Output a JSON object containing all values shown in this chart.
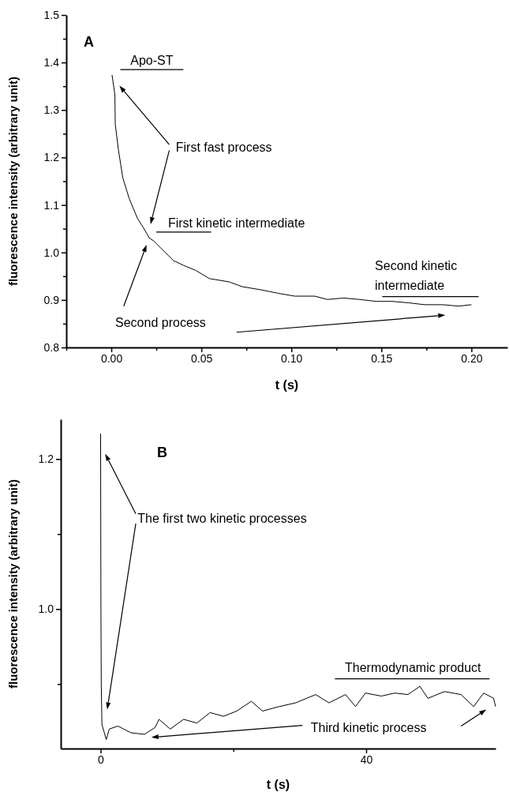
{
  "chart_data": [
    {
      "type": "line",
      "title": "A",
      "xlabel": "t (s)",
      "ylabel": "fluorescence intensity (arbitrary unit)",
      "xlim": [
        -0.025,
        0.22
      ],
      "xticks": [
        {
          "value": -0.025,
          "label": null
        },
        {
          "value": 0,
          "label": "0.00"
        },
        {
          "value": 0.025,
          "label": null
        },
        0.05,
        {
          "value": 0.075,
          "label": null
        },
        {
          "value": 0.1,
          "label": "0.10"
        },
        {
          "value": 0.125,
          "label": null
        },
        0.15,
        {
          "value": 0.175,
          "label": null
        },
        {
          "value": 0.2,
          "label": "0.20"
        }
      ],
      "ylim": [
        0.8,
        1.5
      ],
      "yticks": [
        0.8,
        {
          "value": 0.85,
          "label": null
        },
        0.9,
        {
          "value": 0.95,
          "label": null
        },
        {
          "value": 1.0,
          "label": "1.0"
        },
        {
          "value": 1.05,
          "label": null
        },
        1.1,
        {
          "value": 1.15,
          "label": null
        },
        1.2,
        {
          "value": 1.25,
          "label": null
        },
        1.3,
        {
          "value": 1.35,
          "label": null
        },
        1.4,
        {
          "value": 1.45,
          "label": null
        },
        1.5
      ],
      "series": [
        {
          "color": "#000000",
          "x": [
            0.0004,
            0.002,
            0.0022,
            0.004,
            0.0064,
            0.01,
            0.0145,
            0.018,
            0.021,
            0.0236,
            0.0273,
            0.0345,
            0.04,
            0.047,
            0.0545,
            0.0655,
            0.0727,
            0.0836,
            0.0927,
            0.1018,
            0.113,
            0.12,
            0.129,
            0.138,
            0.147,
            0.156,
            0.165,
            0.174,
            0.184,
            0.193,
            0.2
          ],
          "values": [
            1.374,
            1.332,
            1.27,
            1.215,
            1.157,
            1.113,
            1.072,
            1.051,
            1.031,
            1.024,
            1.01,
            0.983,
            0.973,
            0.962,
            0.945,
            0.938,
            0.928,
            0.921,
            0.914,
            0.908,
            0.908,
            0.901,
            0.904,
            0.901,
            0.897,
            0.897,
            0.894,
            0.89,
            0.89,
            0.887,
            0.89
          ]
        }
      ],
      "annotations": [
        "Apo-ST",
        "First fast process",
        "First kinetic intermediate",
        "Second kinetic intermediate",
        "Second process"
      ]
    },
    {
      "type": "line",
      "title": "B",
      "xlabel": "t (s)",
      "ylabel": "fluorescence intensity (arbitrary unit)",
      "xlim": [
        -6,
        59.5
      ],
      "xticks": [
        0,
        {
          "value": 20,
          "label": null
        },
        40
      ],
      "ylim": [
        0.814,
        1.253
      ],
      "yticks": [
        {
          "value": 0.9,
          "label": null
        },
        {
          "value": 1.0,
          "label": "1.0"
        },
        {
          "value": 1.1,
          "label": null
        },
        1.2
      ],
      "series": [
        {
          "color": "#000000",
          "x": [
            0,
            0.05,
            0.1,
            0.2,
            0.5,
            0.85,
            1.3,
            2.6,
            4.6,
            6.6,
            8.2,
            8.8,
            10.5,
            12.5,
            14.5,
            16.5,
            18.5,
            20.5,
            22.7,
            24.4,
            26.9,
            29.4,
            32.4,
            34.4,
            36.9,
            38.4,
            39.9,
            42.3,
            44.3,
            46.3,
            48.1,
            49.3,
            51.8,
            54.3,
            56.2,
            57.7,
            59.2,
            59.5
          ],
          "values": [
            1.234,
            1.0,
            0.9,
            0.846,
            0.837,
            0.826,
            0.84,
            0.844,
            0.835,
            0.833,
            0.842,
            0.853,
            0.84,
            0.853,
            0.848,
            0.862,
            0.857,
            0.864,
            0.877,
            0.864,
            0.87,
            0.875,
            0.886,
            0.875,
            0.886,
            0.87,
            0.888,
            0.884,
            0.888,
            0.886,
            0.897,
            0.881,
            0.89,
            0.886,
            0.87,
            0.888,
            0.881,
            0.87
          ]
        }
      ],
      "annotations": [
        "The first two kinetic processes",
        "Thermodynamic product",
        "Third kinetic process"
      ]
    }
  ]
}
